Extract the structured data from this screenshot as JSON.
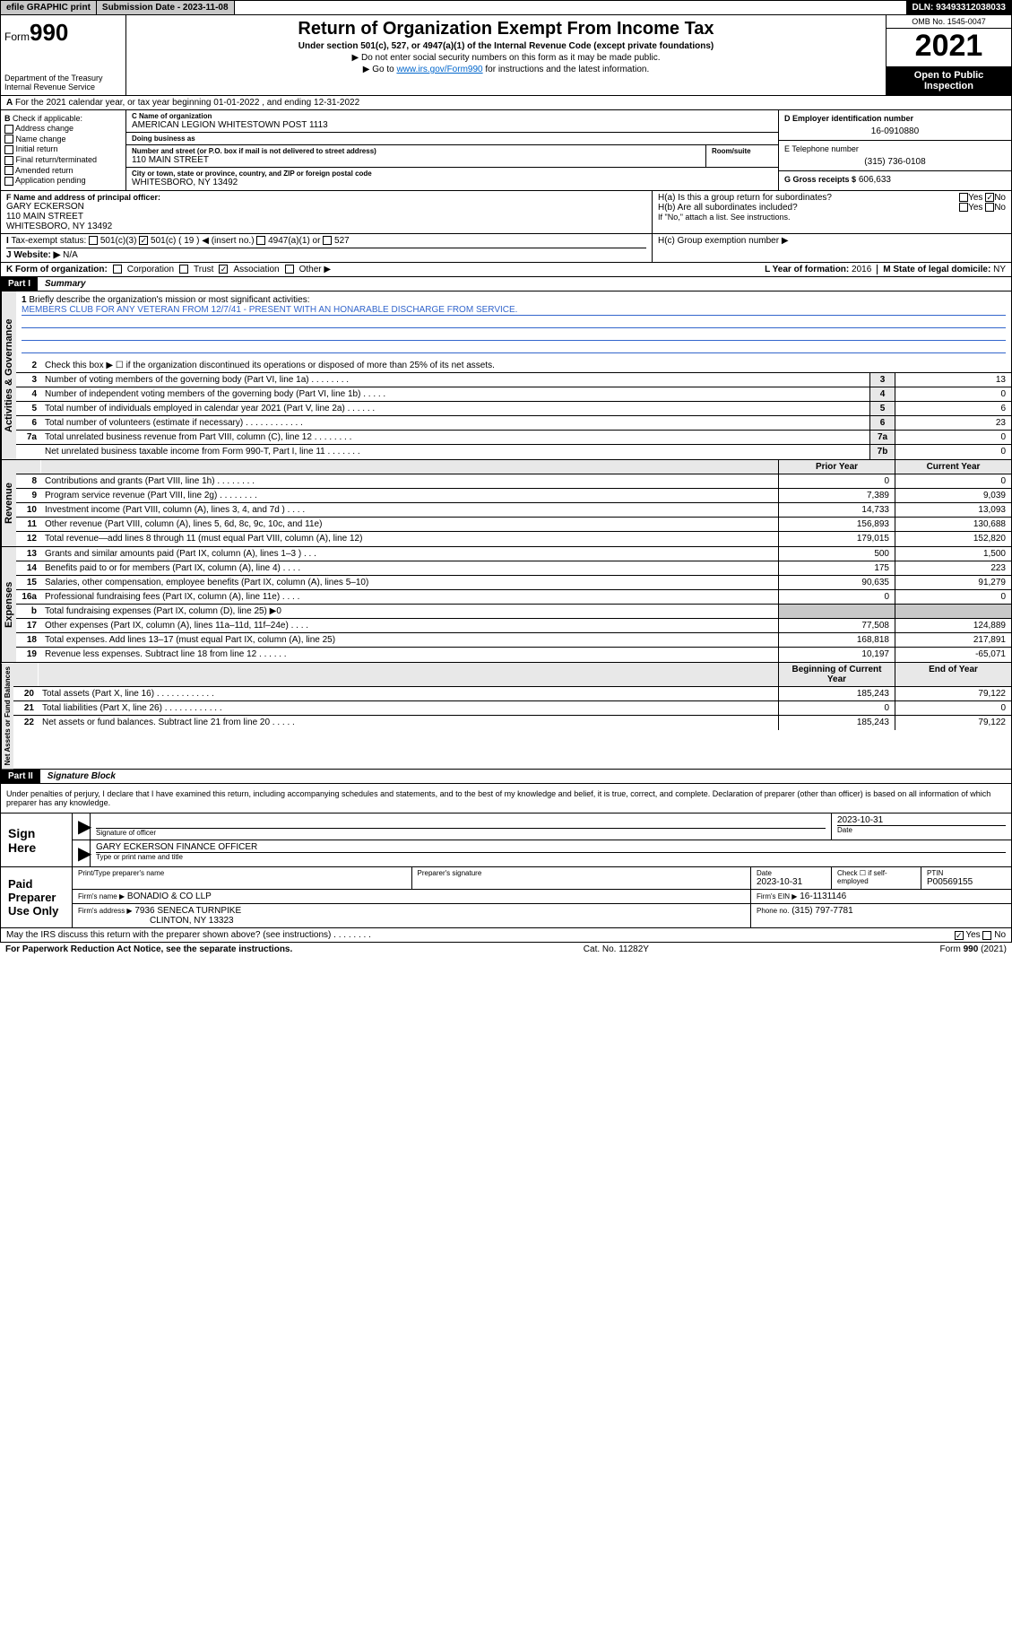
{
  "topbar": {
    "efile": "efile GRAPHIC print",
    "submission_label": "Submission Date - 2023-11-08",
    "dln": "DLN: 93493312038033"
  },
  "header": {
    "form_prefix": "Form",
    "form_number": "990",
    "dept": "Department of the Treasury",
    "irs": "Internal Revenue Service",
    "title": "Return of Organization Exempt From Income Tax",
    "subtitle": "Under section 501(c), 527, or 4947(a)(1) of the Internal Revenue Code (except private foundations)",
    "note1": "▶ Do not enter social security numbers on this form as it may be made public.",
    "note2_pre": "▶ Go to ",
    "note2_link": "www.irs.gov/Form990",
    "note2_post": " for instructions and the latest information.",
    "omb": "OMB No. 1545-0047",
    "year": "2021",
    "inspection": "Open to Public Inspection"
  },
  "row_a": "For the 2021 calendar year, or tax year beginning 01-01-2022   , and ending 12-31-2022",
  "checkB": {
    "label": "Check if applicable:",
    "items": [
      "Address change",
      "Name change",
      "Initial return",
      "Final return/terminated",
      "Amended return",
      "Application pending"
    ]
  },
  "org": {
    "name_label": "C Name of organization",
    "name": "AMERICAN LEGION WHITESTOWN POST 1113",
    "dba_label": "Doing business as",
    "dba": "",
    "street_label": "Number and street (or P.O. box if mail is not delivered to street address)",
    "room_label": "Room/suite",
    "street": "110 MAIN STREET",
    "city_label": "City or town, state or province, country, and ZIP or foreign postal code",
    "city": "WHITESBORO, NY  13492",
    "ein_label": "D Employer identification number",
    "ein": "16-0910880",
    "phone_label": "E Telephone number",
    "phone": "(315) 736-0108",
    "gross_label": "G Gross receipts $",
    "gross": "606,633"
  },
  "officer": {
    "label": "F  Name and address of principal officer:",
    "name": "GARY ECKERSON",
    "street": "110 MAIN STREET",
    "city": "WHITESBORO, NY  13492"
  },
  "ha": {
    "label": "H(a)  Is this a group return for subordinates?",
    "yes": "Yes",
    "no": "No",
    "no_checked": true
  },
  "hb": {
    "label": "H(b)  Are all subordinates included?",
    "note": "If \"No,\" attach a list. See instructions."
  },
  "hc": {
    "label": "H(c)  Group exemption number ▶"
  },
  "tax_status": {
    "label": "Tax-exempt status:",
    "opts": [
      "501(c)(3)",
      "501(c) ( 19 ) ◀ (insert no.)",
      "4947(a)(1) or",
      "527"
    ],
    "checked_index": 1
  },
  "website": {
    "label": "Website: ▶",
    "value": "N/A"
  },
  "formorg": {
    "label": "K Form of organization:",
    "opts": [
      "Corporation",
      "Trust",
      "Association",
      "Other ▶"
    ],
    "checked_index": 2,
    "year_label": "L Year of formation:",
    "year": "2016",
    "state_label": "M State of legal domicile:",
    "state": "NY"
  },
  "part1": {
    "hdr": "Part I",
    "title": "Summary"
  },
  "mission": {
    "intro": "Briefly describe the organization's mission or most significant activities:",
    "text": "MEMBERS CLUB FOR ANY VETERAN FROM 12/7/41 - PRESENT WITH AN HONARABLE DISCHARGE FROM SERVICE."
  },
  "line2": "Check this box ▶ ☐  if the organization discontinued its operations or disposed of more than 25% of its net assets.",
  "gov_lines": [
    {
      "n": "3",
      "d": "Number of voting members of the governing body (Part VI, line 1a)   .    .    .    .    .    .    .    .",
      "box": "3",
      "v": "13"
    },
    {
      "n": "4",
      "d": "Number of independent voting members of the governing body (Part VI, line 1b)   .    .    .    .    .",
      "box": "4",
      "v": "0"
    },
    {
      "n": "5",
      "d": "Total number of individuals employed in calendar year 2021 (Part V, line 2a)   .    .    .    .    .    .",
      "box": "5",
      "v": "6"
    },
    {
      "n": "6",
      "d": "Total number of volunteers (estimate if necessary)   .    .    .    .    .    .    .    .    .    .    .    .",
      "box": "6",
      "v": "23"
    },
    {
      "n": "7a",
      "d": "Total unrelated business revenue from Part VIII, column (C), line 12   .    .    .    .    .    .    .    .",
      "box": "7a",
      "v": "0"
    },
    {
      "n": "",
      "d": "Net unrelated business taxable income from Form 990-T, Part I, line 11   .    .    .    .    .    .    .",
      "box": "7b",
      "v": "0"
    }
  ],
  "col_hdr": {
    "prior": "Prior Year",
    "current": "Current Year"
  },
  "rev_lines": [
    {
      "n": "8",
      "d": "Contributions and grants (Part VIII, line 1h)   .    .    .    .    .    .    .    .",
      "p": "0",
      "c": "0"
    },
    {
      "n": "9",
      "d": "Program service revenue (Part VIII, line 2g)   .    .    .    .    .    .    .    .",
      "p": "7,389",
      "c": "9,039"
    },
    {
      "n": "10",
      "d": "Investment income (Part VIII, column (A), lines 3, 4, and 7d )   .    .    .    .",
      "p": "14,733",
      "c": "13,093"
    },
    {
      "n": "11",
      "d": "Other revenue (Part VIII, column (A), lines 5, 6d, 8c, 9c, 10c, and 11e)",
      "p": "156,893",
      "c": "130,688"
    },
    {
      "n": "12",
      "d": "Total revenue—add lines 8 through 11 (must equal Part VIII, column (A), line 12)",
      "p": "179,015",
      "c": "152,820"
    }
  ],
  "exp_lines": [
    {
      "n": "13",
      "d": "Grants and similar amounts paid (Part IX, column (A), lines 1–3 )   .    .    .",
      "p": "500",
      "c": "1,500"
    },
    {
      "n": "14",
      "d": "Benefits paid to or for members (Part IX, column (A), line 4)   .    .    .    .",
      "p": "175",
      "c": "223"
    },
    {
      "n": "15",
      "d": "Salaries, other compensation, employee benefits (Part IX, column (A), lines 5–10)",
      "p": "90,635",
      "c": "91,279"
    },
    {
      "n": "16a",
      "d": "Professional fundraising fees (Part IX, column (A), line 11e)   .    .    .    .",
      "p": "0",
      "c": "0"
    },
    {
      "n": "b",
      "d": "Total fundraising expenses (Part IX, column (D), line 25) ▶0",
      "p": "",
      "c": "",
      "shaded": true
    },
    {
      "n": "17",
      "d": "Other expenses (Part IX, column (A), lines 11a–11d, 11f–24e)   .    .    .    .",
      "p": "77,508",
      "c": "124,889"
    },
    {
      "n": "18",
      "d": "Total expenses. Add lines 13–17 (must equal Part IX, column (A), line 25)",
      "p": "168,818",
      "c": "217,891"
    },
    {
      "n": "19",
      "d": "Revenue less expenses. Subtract line 18 from line 12   .    .    .    .    .    .",
      "p": "10,197",
      "c": "-65,071"
    }
  ],
  "na_hdr": {
    "begin": "Beginning of Current Year",
    "end": "End of Year"
  },
  "na_lines": [
    {
      "n": "20",
      "d": "Total assets (Part X, line 16)   .    .    .    .    .    .    .    .    .    .    .    .",
      "p": "185,243",
      "c": "79,122"
    },
    {
      "n": "21",
      "d": "Total liabilities (Part X, line 26)   .    .    .    .    .    .    .    .    .    .    .    .",
      "p": "0",
      "c": "0"
    },
    {
      "n": "22",
      "d": "Net assets or fund balances. Subtract line 21 from line 20   .    .    .    .    .",
      "p": "185,243",
      "c": "79,122"
    }
  ],
  "sidelabels": {
    "gov": "Activities & Governance",
    "rev": "Revenue",
    "exp": "Expenses",
    "na": "Net Assets or Fund Balances"
  },
  "part2": {
    "hdr": "Part II",
    "title": "Signature Block"
  },
  "sig_decl": "Under penalties of perjury, I declare that I have examined this return, including accompanying schedules and statements, and to the best of my knowledge and belief, it is true, correct, and complete. Declaration of preparer (other than officer) is based on all information of which preparer has any knowledge.",
  "sign_here": "Sign Here",
  "sig_officer": {
    "sig_label": "Signature of officer",
    "date_label": "Date",
    "date": "2023-10-31",
    "name": "GARY ECKERSON FINANCE OFFICER",
    "name_label": "Type or print name and title"
  },
  "paid": {
    "label": "Paid Preparer Use Only",
    "print_label": "Print/Type preparer's name",
    "sig_label": "Preparer's signature",
    "date_label": "Date",
    "date": "2023-10-31",
    "check_label": "Check ☐ if self-employed",
    "ptin_label": "PTIN",
    "ptin": "P00569155",
    "firm_name_label": "Firm's name    ▶",
    "firm_name": "BONADIO & CO LLP",
    "firm_ein_label": "Firm's EIN ▶",
    "firm_ein": "16-1131146",
    "firm_addr_label": "Firm's address ▶",
    "firm_addr": "7936 SENECA TURNPIKE",
    "firm_city": "CLINTON, NY  13323",
    "phone_label": "Phone no.",
    "phone": "(315) 797-7781"
  },
  "may_discuss": "May the IRS discuss this return with the preparer shown above? (see instructions)   .    .    .    .    .    .    .    .",
  "footer": {
    "left": "For Paperwork Reduction Act Notice, see the separate instructions.",
    "mid": "Cat. No. 11282Y",
    "right": "Form 990 (2021)"
  }
}
